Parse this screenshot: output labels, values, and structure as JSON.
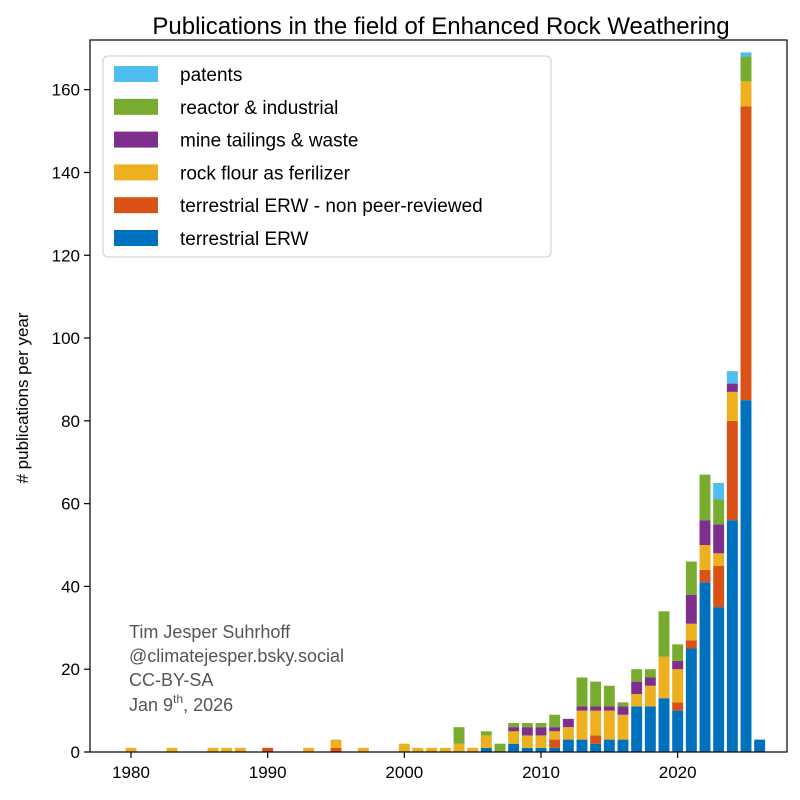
{
  "chart_data": {
    "type": "bar",
    "stacked": true,
    "title": "Publications in the field of Enhanced Rock Weathering",
    "xlabel": "",
    "ylabel": "# publications per year",
    "xlim": [
      1977,
      2028
    ],
    "ylim": [
      0,
      172
    ],
    "xticks": [
      "1980",
      "1990",
      "2000",
      "2010",
      "2020"
    ],
    "yticks": [
      "0",
      "20",
      "40",
      "60",
      "80",
      "100",
      "120",
      "140",
      "160"
    ],
    "legend_position": "top-left",
    "years": [
      1980,
      1983,
      1986,
      1987,
      1988,
      1990,
      1993,
      1995,
      1997,
      2000,
      2001,
      2002,
      2003,
      2004,
      2005,
      2006,
      2007,
      2008,
      2009,
      2010,
      2011,
      2012,
      2013,
      2014,
      2015,
      2016,
      2017,
      2018,
      2019,
      2020,
      2021,
      2022,
      2023,
      2024,
      2025,
      2026
    ],
    "series": [
      {
        "name": "terrestrial ERW",
        "color": "#0072BD",
        "values": [
          0,
          0,
          0,
          0,
          0,
          0,
          0,
          0,
          0,
          0,
          0,
          0,
          0,
          0,
          0,
          1,
          0,
          2,
          1,
          1,
          1,
          3,
          3,
          2,
          3,
          3,
          11,
          11,
          13,
          10,
          25,
          41,
          35,
          56,
          85,
          3
        ]
      },
      {
        "name": "terrestrial ERW - non peer-reviewed",
        "color": "#D95319",
        "values": [
          0,
          0,
          0,
          0,
          0,
          1,
          0,
          1,
          0,
          0,
          0,
          0,
          0,
          0,
          0,
          0,
          0,
          0,
          0,
          0,
          2,
          0,
          0,
          2,
          0,
          0,
          0,
          0,
          0,
          2,
          2,
          3,
          10,
          24,
          71,
          0
        ]
      },
      {
        "name": "rock flour as ferilizer",
        "color": "#EDB120",
        "values": [
          1,
          1,
          1,
          1,
          1,
          0,
          1,
          2,
          1,
          2,
          1,
          1,
          1,
          2,
          1,
          3,
          0,
          3,
          3,
          3,
          2,
          3,
          7,
          6,
          7,
          6,
          3,
          5,
          10,
          8,
          4,
          6,
          3,
          7,
          6,
          0
        ]
      },
      {
        "name": "mine tailings & waste",
        "color": "#7E2F8E",
        "values": [
          0,
          0,
          0,
          0,
          0,
          0,
          0,
          0,
          0,
          0,
          0,
          0,
          0,
          0,
          0,
          0,
          0,
          1,
          2,
          2,
          1,
          2,
          1,
          1,
          1,
          2,
          3,
          2,
          0,
          2,
          7,
          6,
          7,
          2,
          0,
          0
        ]
      },
      {
        "name": "reactor & industrial",
        "color": "#77AC30",
        "values": [
          0,
          0,
          0,
          0,
          0,
          0,
          0,
          0,
          0,
          0,
          0,
          0,
          0,
          4,
          0,
          1,
          2,
          1,
          1,
          1,
          3,
          0,
          7,
          6,
          5,
          1,
          3,
          2,
          11,
          4,
          8,
          11,
          6,
          0,
          6,
          0
        ]
      },
      {
        "name": "patents",
        "color": "#4DBEEE",
        "values": [
          0,
          0,
          0,
          0,
          0,
          0,
          0,
          0,
          0,
          0,
          0,
          0,
          0,
          0,
          0,
          0,
          0,
          0,
          0,
          0,
          0,
          0,
          0,
          0,
          0,
          0,
          0,
          0,
          0,
          0,
          0,
          0,
          4,
          3,
          1,
          0
        ]
      }
    ]
  },
  "legend_order": [
    {
      "label": "patents",
      "color": "#4DBEEE"
    },
    {
      "label": "reactor & industrial",
      "color": "#77AC30"
    },
    {
      "label": "mine tailings & waste",
      "color": "#7E2F8E"
    },
    {
      "label": "rock flour as ferilizer",
      "color": "#EDB120"
    },
    {
      "label": "terrestrial ERW - non peer-reviewed",
      "color": "#D95319"
    },
    {
      "label": "terrestrial ERW",
      "color": "#0072BD"
    }
  ],
  "credits": {
    "author": "Tim Jesper Suhrhoff",
    "handle": "@climatejesper.bsky.social",
    "license": "CC-BY-SA",
    "date_prefix": "Jan 9",
    "date_superscript": "th",
    "date_suffix": ", 2026"
  }
}
